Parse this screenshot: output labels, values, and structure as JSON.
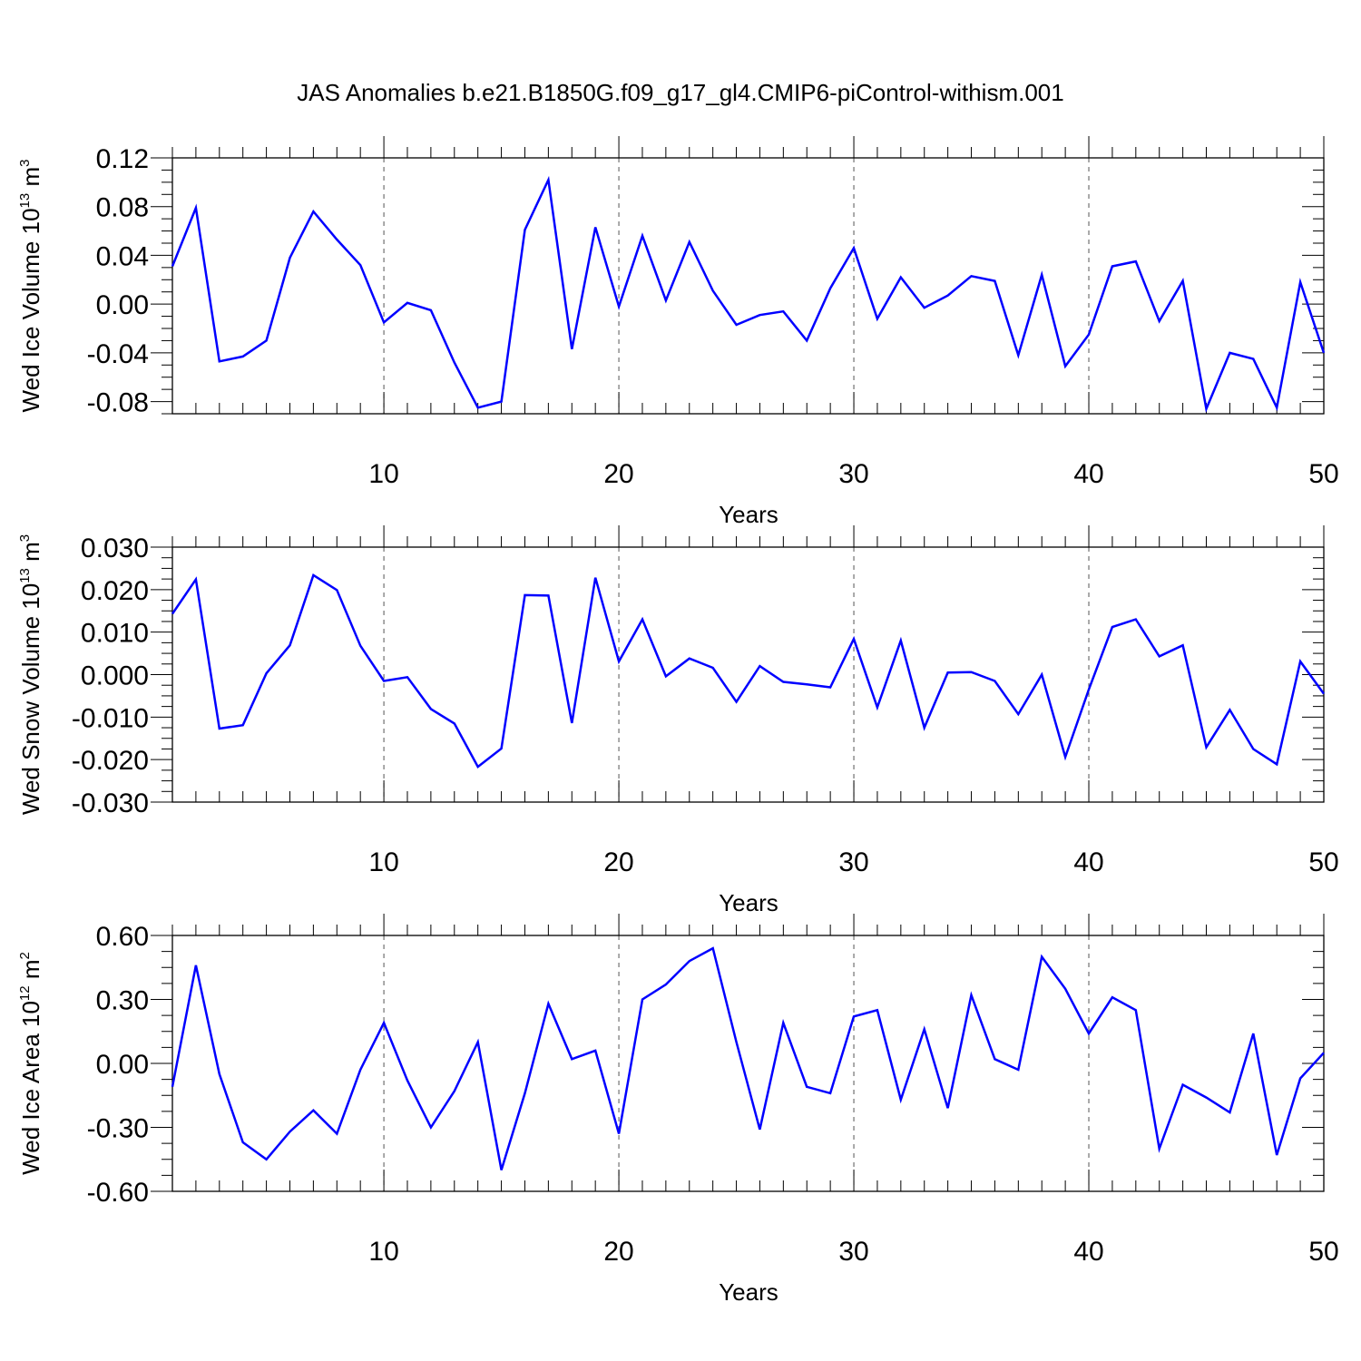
{
  "title": "JAS Anomalies b.e21.B1850G.f09_g17_gl4.CMIP6-piControl-withism.001",
  "colors": {
    "series": "#0000ff",
    "axes": "#000000",
    "grid": "#555555"
  },
  "chart_data": [
    {
      "type": "line",
      "name": "Wed Ice Volume",
      "ylabel_main": "Wed Ice Volume 10",
      "ylabel_exp": "13",
      "ylabel_unit": " m",
      "ylabel_unit_exp": "3",
      "xlabel": "Years",
      "xlim": [
        1,
        50
      ],
      "ylim": [
        -0.09,
        0.12
      ],
      "xticks": [
        10,
        20,
        30,
        40,
        50
      ],
      "xtick_labels": [
        "10",
        "20",
        "30",
        "40",
        "50"
      ],
      "yticks": [
        -0.08,
        -0.04,
        0.0,
        0.04,
        0.08,
        0.12
      ],
      "ytick_labels": [
        "-0.08",
        "-0.04",
        "0.00",
        "0.04",
        "0.08",
        "0.12"
      ],
      "grid_x": [
        10,
        20,
        30,
        40
      ],
      "x": [
        1,
        2,
        3,
        4,
        5,
        6,
        7,
        8,
        9,
        10,
        11,
        12,
        13,
        14,
        15,
        16,
        17,
        18,
        19,
        20,
        21,
        22,
        23,
        24,
        25,
        26,
        27,
        28,
        29,
        30,
        31,
        32,
        33,
        34,
        35,
        36,
        37,
        38,
        39,
        40,
        41,
        42,
        43,
        44,
        45,
        46,
        47,
        48,
        49,
        50
      ],
      "values": [
        0.031,
        0.079,
        -0.047,
        -0.043,
        -0.03,
        0.038,
        0.076,
        0.053,
        0.032,
        -0.015,
        0.001,
        -0.005,
        -0.048,
        -0.085,
        -0.08,
        0.061,
        0.102,
        -0.037,
        0.063,
        -0.002,
        0.056,
        0.003,
        0.051,
        0.011,
        -0.017,
        -0.009,
        -0.006,
        -0.03,
        0.013,
        0.046,
        -0.012,
        0.022,
        -0.003,
        0.007,
        0.023,
        0.019,
        -0.042,
        0.024,
        -0.051,
        -0.025,
        0.031,
        0.035,
        -0.014,
        0.019,
        -0.086,
        -0.04,
        -0.045,
        -0.085,
        0.018,
        -0.04
      ]
    },
    {
      "type": "line",
      "name": "Wed Snow Volume",
      "ylabel_main": "Wed Snow Volume 10",
      "ylabel_exp": "13",
      "ylabel_unit": " m",
      "ylabel_unit_exp": "3",
      "xlabel": "Years",
      "xlim": [
        1,
        50
      ],
      "ylim": [
        -0.03,
        0.03
      ],
      "xticks": [
        10,
        20,
        30,
        40,
        50
      ],
      "xtick_labels": [
        "10",
        "20",
        "30",
        "40",
        "50"
      ],
      "yticks": [
        -0.03,
        -0.02,
        -0.01,
        0.0,
        0.01,
        0.02,
        0.03
      ],
      "ytick_labels": [
        "-0.030",
        "-0.020",
        "-0.010",
        "0.000",
        "0.010",
        "0.020",
        "0.030"
      ],
      "grid_x": [
        10,
        20,
        30,
        40
      ],
      "x": [
        1,
        2,
        3,
        4,
        5,
        6,
        7,
        8,
        9,
        10,
        11,
        12,
        13,
        14,
        15,
        16,
        17,
        18,
        19,
        20,
        21,
        22,
        23,
        24,
        25,
        26,
        27,
        28,
        29,
        30,
        31,
        32,
        33,
        34,
        35,
        36,
        37,
        38,
        39,
        40,
        41,
        42,
        43,
        44,
        45,
        46,
        47,
        48,
        49,
        50
      ],
      "values": [
        0.0143,
        0.0224,
        -0.0127,
        -0.0119,
        0.0003,
        0.0069,
        0.0234,
        0.0199,
        0.0068,
        -0.0015,
        -0.0006,
        -0.0081,
        -0.0115,
        -0.0217,
        -0.0174,
        0.0187,
        0.0186,
        -0.0114,
        0.0228,
        0.0031,
        0.013,
        -0.0004,
        0.0038,
        0.0016,
        -0.0064,
        0.002,
        -0.0017,
        -0.0023,
        -0.003,
        0.0084,
        -0.0077,
        0.008,
        -0.0125,
        0.0005,
        0.0006,
        -0.0015,
        -0.0093,
        0.0,
        -0.0194,
        -0.0035,
        0.0112,
        0.013,
        0.0043,
        0.0069,
        -0.0171,
        -0.0083,
        -0.0175,
        -0.0211,
        0.0031,
        -0.0045
      ]
    },
    {
      "type": "line",
      "name": "Wed Ice Area",
      "ylabel_main": "Wed Ice Area 10",
      "ylabel_exp": "12",
      "ylabel_unit": " m",
      "ylabel_unit_exp": "2",
      "xlabel": "Years",
      "xlim": [
        1,
        50
      ],
      "ylim": [
        -0.6,
        0.6
      ],
      "xticks": [
        10,
        20,
        30,
        40,
        50
      ],
      "xtick_labels": [
        "10",
        "20",
        "30",
        "40",
        "50"
      ],
      "yticks": [
        -0.6,
        -0.3,
        0.0,
        0.3,
        0.6
      ],
      "ytick_labels": [
        "-0.60",
        "-0.30",
        "0.00",
        "0.30",
        "0.60"
      ],
      "grid_x": [
        10,
        20,
        30,
        40
      ],
      "x": [
        1,
        2,
        3,
        4,
        5,
        6,
        7,
        8,
        9,
        10,
        11,
        12,
        13,
        14,
        15,
        16,
        17,
        18,
        19,
        20,
        21,
        22,
        23,
        24,
        25,
        26,
        27,
        28,
        29,
        30,
        31,
        32,
        33,
        34,
        35,
        36,
        37,
        38,
        39,
        40,
        41,
        42,
        43,
        44,
        45,
        46,
        47,
        48,
        49,
        50
      ],
      "values": [
        -0.11,
        0.46,
        -0.05,
        -0.37,
        -0.45,
        -0.32,
        -0.22,
        -0.33,
        -0.03,
        0.19,
        -0.08,
        -0.3,
        -0.13,
        0.1,
        -0.5,
        -0.14,
        0.28,
        0.02,
        0.06,
        -0.33,
        0.3,
        0.37,
        0.48,
        0.54,
        0.1,
        -0.31,
        0.19,
        -0.11,
        -0.14,
        0.22,
        0.25,
        -0.17,
        0.16,
        -0.21,
        0.32,
        0.02,
        -0.03,
        0.5,
        0.35,
        0.14,
        0.31,
        0.25,
        -0.4,
        -0.1,
        -0.16,
        -0.23,
        0.14,
        -0.43,
        -0.07,
        0.05
      ]
    }
  ]
}
